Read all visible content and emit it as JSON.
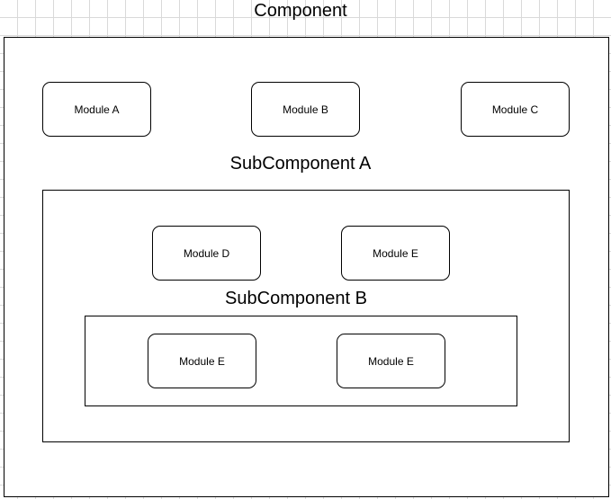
{
  "diagram": {
    "component": {
      "title": "Component",
      "modules": [
        "Module A",
        "Module B",
        "Module C"
      ]
    },
    "subcomponent_a": {
      "title": "SubComponent A",
      "modules": [
        "Module D",
        "Module E"
      ]
    },
    "subcomponent_b": {
      "title": "SubComponent B",
      "modules": [
        "Module E",
        "Module E"
      ]
    }
  },
  "colors": {
    "stroke": "#000000",
    "fill": "#ffffff",
    "grid": "#d9d9d9"
  }
}
